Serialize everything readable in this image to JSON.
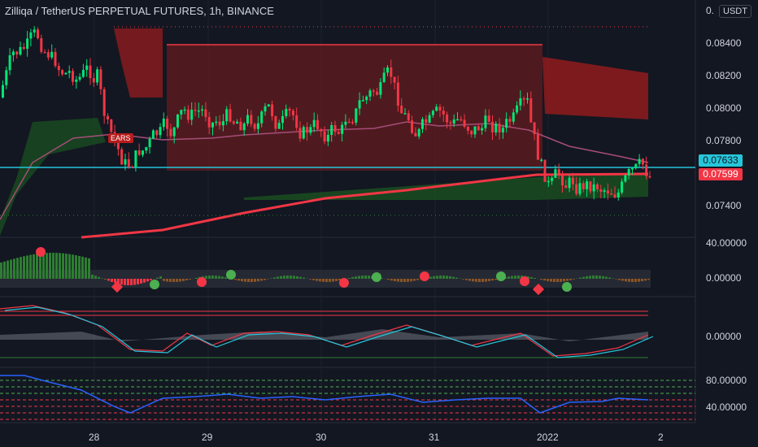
{
  "title": "Zilliqa / TetherUS PERPETUAL FUTURES, 1h, BINANCE",
  "currency": "USDT",
  "price_axis": {
    "labels": [
      "0.",
      "0.08400",
      "0.08200",
      "0.08000",
      "0.07800",
      "0.07400"
    ],
    "last_price": "0.07633",
    "marker_price": "0.07599"
  },
  "pane_axes": {
    "momentum": "40.00000",
    "momentum_zero": "0.00000",
    "oscillator": "0.00000",
    "rsi_upper": "80.00000",
    "rsi_lower": "40.00000"
  },
  "time_axis": [
    "28",
    "29",
    "30",
    "31",
    "2022",
    "2"
  ],
  "annotations": {
    "bears_label": "EARS"
  },
  "colors": {
    "background": "#131722",
    "bull": "#00e676",
    "bear": "#f23645",
    "cyan_line": "#26c6da",
    "ma_purple": "#a64d79",
    "rsi_blue": "#2962ff"
  }
}
